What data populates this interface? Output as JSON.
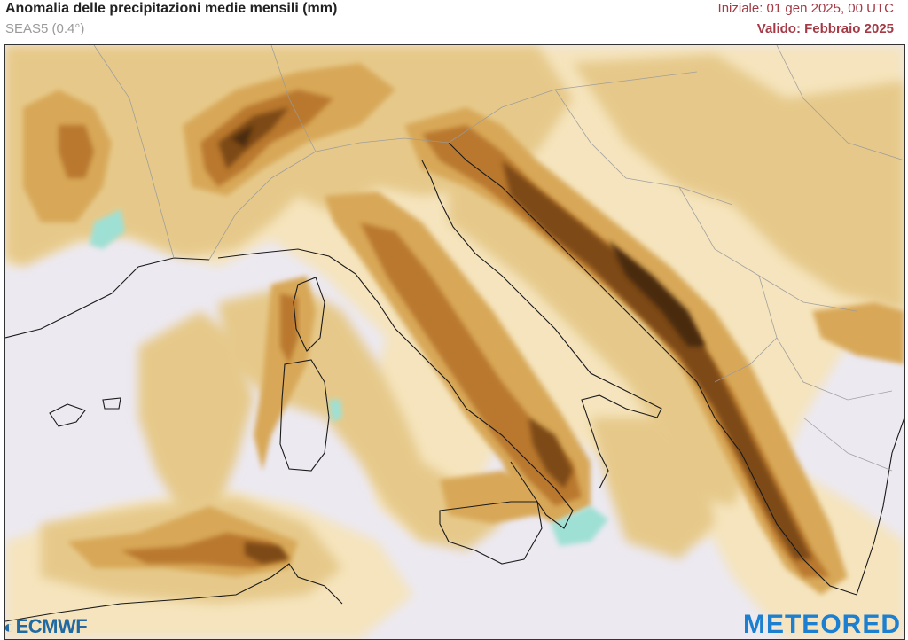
{
  "header": {
    "title": "Anomalia delle precipitazioni medie mensili (mm)",
    "model": "SEAS5 (0.4°)",
    "init": "Iniziale: 01 gen 2025, 00 UTC",
    "valid": "Valido: Febbraio 2025"
  },
  "logos": {
    "left": "ECMWF",
    "right": "METEORED"
  },
  "colors": {
    "sea_neutral": "#ece9f1",
    "anomaly_light": "#f5e4bd",
    "anomaly_tan": "#e6c98a",
    "anomaly_mid": "#d8a858",
    "anomaly_brown": "#b9782e",
    "anomaly_dark": "#7d4a17",
    "anomaly_darkest": "#4a2a0c",
    "positive_teal": "#9fe0d4",
    "title_red": "#a43a45",
    "logo_blue": "#1d7fd0"
  }
}
